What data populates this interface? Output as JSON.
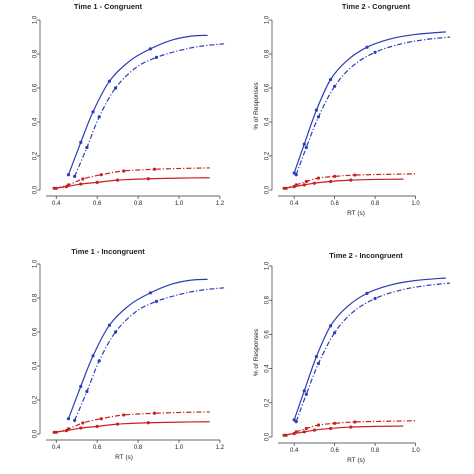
{
  "chart_data": [
    {
      "type": "line",
      "title": "Time 1 - Congruent",
      "xlabel": "",
      "ylabel": "",
      "xlim": [
        0.35,
        1.22
      ],
      "ylim": [
        0,
        1.0
      ],
      "xticks": [
        "0.4",
        "0.6",
        "0.8",
        "1.0",
        "1.2"
      ],
      "yticks": [
        "0.0",
        "0.2",
        "0.4",
        "0.6",
        "0.8",
        "1.0"
      ],
      "grid": false,
      "series": [
        {
          "color": "#2a3db8",
          "style": "solid",
          "x": [
            0.46,
            0.52,
            0.58,
            0.66,
            0.76,
            0.86,
            0.96,
            1.06,
            1.14
          ],
          "y": [
            0.09,
            0.28,
            0.46,
            0.64,
            0.76,
            0.83,
            0.88,
            0.905,
            0.91
          ],
          "markers": [
            0.46,
            0.52,
            0.58,
            0.66,
            0.86
          ]
        },
        {
          "color": "#2a3db8",
          "style": "dashdot",
          "x": [
            0.49,
            0.55,
            0.61,
            0.69,
            0.79,
            0.89,
            1.0,
            1.1,
            1.22
          ],
          "y": [
            0.08,
            0.25,
            0.43,
            0.6,
            0.72,
            0.78,
            0.82,
            0.845,
            0.86
          ],
          "markers": [
            0.49,
            0.55,
            0.61,
            0.69,
            0.89
          ]
        },
        {
          "color": "#c8201e",
          "style": "solid",
          "x": [
            0.39,
            0.45,
            0.52,
            0.6,
            0.7,
            0.85,
            1.0,
            1.15
          ],
          "y": [
            0.01,
            0.02,
            0.035,
            0.045,
            0.058,
            0.066,
            0.07,
            0.072
          ],
          "markers": [
            0.39,
            0.45,
            0.52,
            0.6,
            0.7,
            0.85
          ]
        },
        {
          "color": "#c8201e",
          "style": "dashdot",
          "x": [
            0.4,
            0.46,
            0.53,
            0.62,
            0.73,
            0.88,
            1.02,
            1.15
          ],
          "y": [
            0.01,
            0.03,
            0.065,
            0.09,
            0.112,
            0.122,
            0.127,
            0.13
          ],
          "markers": [
            0.4,
            0.46,
            0.53,
            0.62,
            0.73,
            0.88
          ]
        }
      ]
    },
    {
      "type": "line",
      "title": "Time 2 - Congruent",
      "xlabel": "RT (s)",
      "ylabel": "% of Responses",
      "xlim": [
        0.32,
        1.2
      ],
      "ylim": [
        0,
        1.0
      ],
      "xticks": [
        "0.4",
        "0.6",
        "0.8",
        "1.0"
      ],
      "yticks": [
        "0.0",
        "0.2",
        "0.4",
        "0.6",
        "0.8",
        "1.0"
      ],
      "grid": false,
      "series": [
        {
          "color": "#2a3db8",
          "style": "solid",
          "x": [
            0.4,
            0.45,
            0.51,
            0.58,
            0.66,
            0.76,
            0.88,
            1.0,
            1.15
          ],
          "y": [
            0.1,
            0.27,
            0.47,
            0.65,
            0.76,
            0.84,
            0.89,
            0.915,
            0.93
          ],
          "markers": [
            0.4,
            0.45,
            0.51,
            0.58,
            0.76
          ]
        },
        {
          "color": "#2a3db8",
          "style": "dashdot",
          "x": [
            0.41,
            0.46,
            0.52,
            0.6,
            0.69,
            0.8,
            0.93,
            1.05,
            1.17
          ],
          "y": [
            0.09,
            0.25,
            0.43,
            0.61,
            0.73,
            0.81,
            0.86,
            0.885,
            0.9
          ],
          "markers": [
            0.41,
            0.46,
            0.52,
            0.6,
            0.8
          ]
        },
        {
          "color": "#c8201e",
          "style": "solid",
          "x": [
            0.35,
            0.4,
            0.45,
            0.5,
            0.58,
            0.68,
            0.8,
            0.94
          ],
          "y": [
            0.01,
            0.02,
            0.03,
            0.04,
            0.05,
            0.058,
            0.062,
            0.064
          ],
          "markers": [
            0.35,
            0.4,
            0.45,
            0.5,
            0.58,
            0.68
          ]
        },
        {
          "color": "#c8201e",
          "style": "dashdot",
          "x": [
            0.36,
            0.41,
            0.46,
            0.52,
            0.6,
            0.7,
            0.85,
            1.0
          ],
          "y": [
            0.01,
            0.03,
            0.05,
            0.07,
            0.08,
            0.088,
            0.092,
            0.095
          ],
          "markers": [
            0.36,
            0.41,
            0.46,
            0.52,
            0.6,
            0.7
          ]
        }
      ]
    },
    {
      "type": "line",
      "title": "Time 1 - Incongruent",
      "xlabel": "RT (s)",
      "ylabel": "",
      "xlim": [
        0.35,
        1.22
      ],
      "ylim": [
        0,
        1.0
      ],
      "xticks": [
        "0.4",
        "0.6",
        "0.8",
        "1.0",
        "1.2"
      ],
      "yticks": [
        "0.0",
        "0.2",
        "0.4",
        "0.6",
        "0.8",
        "1.0"
      ],
      "grid": false,
      "series": [
        {
          "color": "#2a3db8",
          "style": "solid",
          "x": [
            0.46,
            0.52,
            0.58,
            0.66,
            0.76,
            0.86,
            0.96,
            1.06,
            1.14
          ],
          "y": [
            0.09,
            0.28,
            0.46,
            0.64,
            0.76,
            0.83,
            0.88,
            0.905,
            0.91
          ],
          "markers": [
            0.46,
            0.52,
            0.58,
            0.66,
            0.86
          ]
        },
        {
          "color": "#2a3db8",
          "style": "dashdot",
          "x": [
            0.49,
            0.55,
            0.61,
            0.69,
            0.79,
            0.89,
            1.0,
            1.1,
            1.22
          ],
          "y": [
            0.08,
            0.25,
            0.43,
            0.6,
            0.72,
            0.78,
            0.82,
            0.845,
            0.86
          ],
          "markers": [
            0.49,
            0.55,
            0.61,
            0.69,
            0.89
          ]
        },
        {
          "color": "#c8201e",
          "style": "solid",
          "x": [
            0.39,
            0.45,
            0.52,
            0.6,
            0.7,
            0.85,
            1.0,
            1.15
          ],
          "y": [
            0.01,
            0.02,
            0.035,
            0.045,
            0.058,
            0.066,
            0.07,
            0.072
          ],
          "markers": [
            0.39,
            0.45,
            0.52,
            0.6,
            0.7,
            0.85
          ]
        },
        {
          "color": "#c8201e",
          "style": "dashdot",
          "x": [
            0.4,
            0.46,
            0.53,
            0.62,
            0.73,
            0.88,
            1.02,
            1.15
          ],
          "y": [
            0.01,
            0.03,
            0.065,
            0.09,
            0.112,
            0.122,
            0.127,
            0.13
          ],
          "markers": [
            0.4,
            0.46,
            0.53,
            0.62,
            0.73,
            0.88
          ]
        }
      ]
    },
    {
      "type": "line",
      "title": "Time 2 - Incongruent",
      "xlabel": "RT (s)",
      "ylabel": "% of Responses",
      "xlim": [
        0.32,
        1.2
      ],
      "ylim": [
        0,
        1.0
      ],
      "xticks": [
        "0.4",
        "0.6",
        "0.8",
        "1.0"
      ],
      "yticks": [
        "0.0",
        "0.2",
        "0.4",
        "0.6",
        "0.8",
        "1.0"
      ],
      "grid": false,
      "series": [
        {
          "color": "#2a3db8",
          "style": "solid",
          "x": [
            0.4,
            0.45,
            0.51,
            0.58,
            0.66,
            0.76,
            0.88,
            1.0,
            1.15
          ],
          "y": [
            0.1,
            0.27,
            0.47,
            0.65,
            0.76,
            0.84,
            0.89,
            0.915,
            0.93
          ],
          "markers": [
            0.4,
            0.45,
            0.51,
            0.58,
            0.76
          ]
        },
        {
          "color": "#2a3db8",
          "style": "dashdot",
          "x": [
            0.41,
            0.46,
            0.52,
            0.6,
            0.69,
            0.8,
            0.93,
            1.05,
            1.17
          ],
          "y": [
            0.09,
            0.25,
            0.43,
            0.61,
            0.73,
            0.81,
            0.86,
            0.885,
            0.9
          ],
          "markers": [
            0.41,
            0.46,
            0.52,
            0.6,
            0.8
          ]
        },
        {
          "color": "#c8201e",
          "style": "solid",
          "x": [
            0.35,
            0.4,
            0.45,
            0.5,
            0.58,
            0.68,
            0.8,
            0.94
          ],
          "y": [
            0.01,
            0.02,
            0.03,
            0.04,
            0.05,
            0.058,
            0.062,
            0.064
          ],
          "markers": [
            0.35,
            0.4,
            0.45,
            0.5,
            0.58,
            0.68
          ]
        },
        {
          "color": "#c8201e",
          "style": "dashdot",
          "x": [
            0.36,
            0.41,
            0.46,
            0.52,
            0.6,
            0.7,
            0.85,
            1.0
          ],
          "y": [
            0.01,
            0.03,
            0.05,
            0.07,
            0.08,
            0.088,
            0.092,
            0.095
          ],
          "markers": [
            0.36,
            0.41,
            0.46,
            0.52,
            0.6,
            0.7
          ]
        }
      ]
    }
  ]
}
